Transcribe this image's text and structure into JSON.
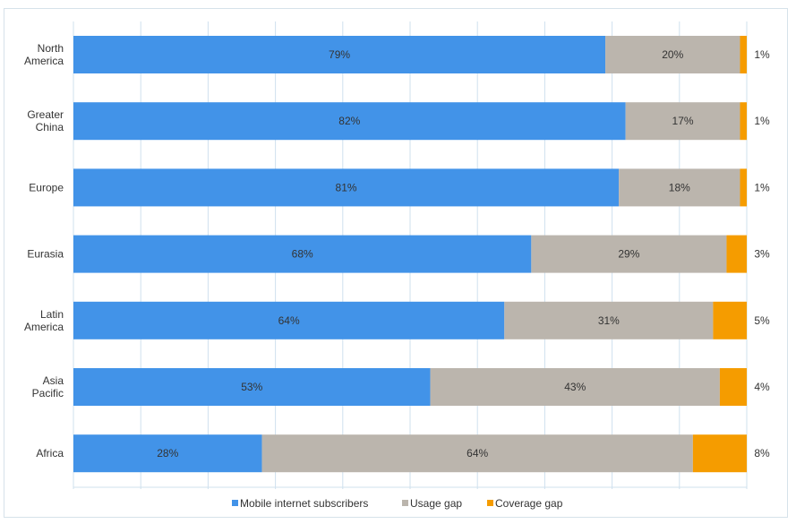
{
  "chart_data": {
    "type": "bar",
    "orientation": "horizontal",
    "stacked": true,
    "categories": [
      [
        "North",
        "America"
      ],
      [
        "Greater",
        "China"
      ],
      [
        "Europe"
      ],
      [
        "Eurasia"
      ],
      [
        "Latin",
        "America"
      ],
      [
        "Asia",
        "Pacific"
      ],
      [
        "Africa"
      ]
    ],
    "series": [
      {
        "name": "Mobile internet subscribers",
        "color": "#4293e8",
        "values": [
          79,
          82,
          81,
          68,
          64,
          53,
          28
        ],
        "labels": [
          "79%",
          "82%",
          "81%",
          "68%",
          "64%",
          "53%",
          "28%"
        ]
      },
      {
        "name": "Usage gap",
        "color": "#bbb5ad",
        "values": [
          20,
          17,
          18,
          29,
          31,
          43,
          64
        ],
        "labels": [
          "20%",
          "17%",
          "18%",
          "29%",
          "31%",
          "43%",
          "64%"
        ]
      },
      {
        "name": "Coverage gap",
        "color": "#f59c00",
        "values": [
          1,
          1,
          1,
          3,
          5,
          4,
          8
        ],
        "labels": [
          "1%",
          "1%",
          "1%",
          "3%",
          "5%",
          "4%",
          "8%"
        ]
      }
    ],
    "xlim": [
      0,
      100
    ],
    "grid": true,
    "legend": "bottom"
  }
}
